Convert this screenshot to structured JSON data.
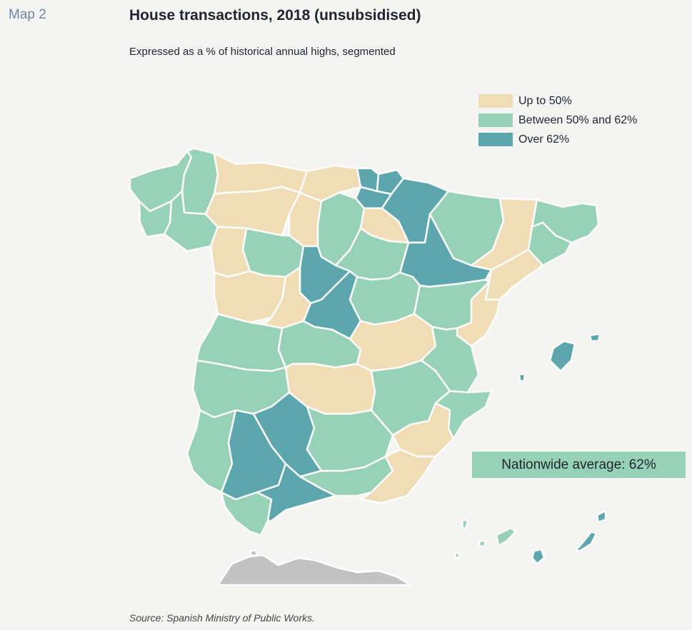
{
  "header": {
    "map_number": "Map 2",
    "title": "House transactions, 2018 (unsubsidised)",
    "subtitle": "Expressed as a % of historical annual highs, segmented"
  },
  "legend": {
    "items": [
      {
        "label": "Up to 50%",
        "category": "low",
        "color": "#f0ddb5"
      },
      {
        "label": "Between 50% and 62%",
        "category": "mid",
        "color": "#97d2b6"
      },
      {
        "label": "Over 62%",
        "category": "high",
        "color": "#5ca7ad"
      }
    ]
  },
  "annotation": {
    "nationwide_average": "Nationwide average: 62%"
  },
  "source": "Source: Spanish Ministry of Public Works.",
  "colors": {
    "low": "#f0ddb5",
    "mid": "#97d2b6",
    "high": "#5ca7ad",
    "other": "#c2c2c2"
  }
}
